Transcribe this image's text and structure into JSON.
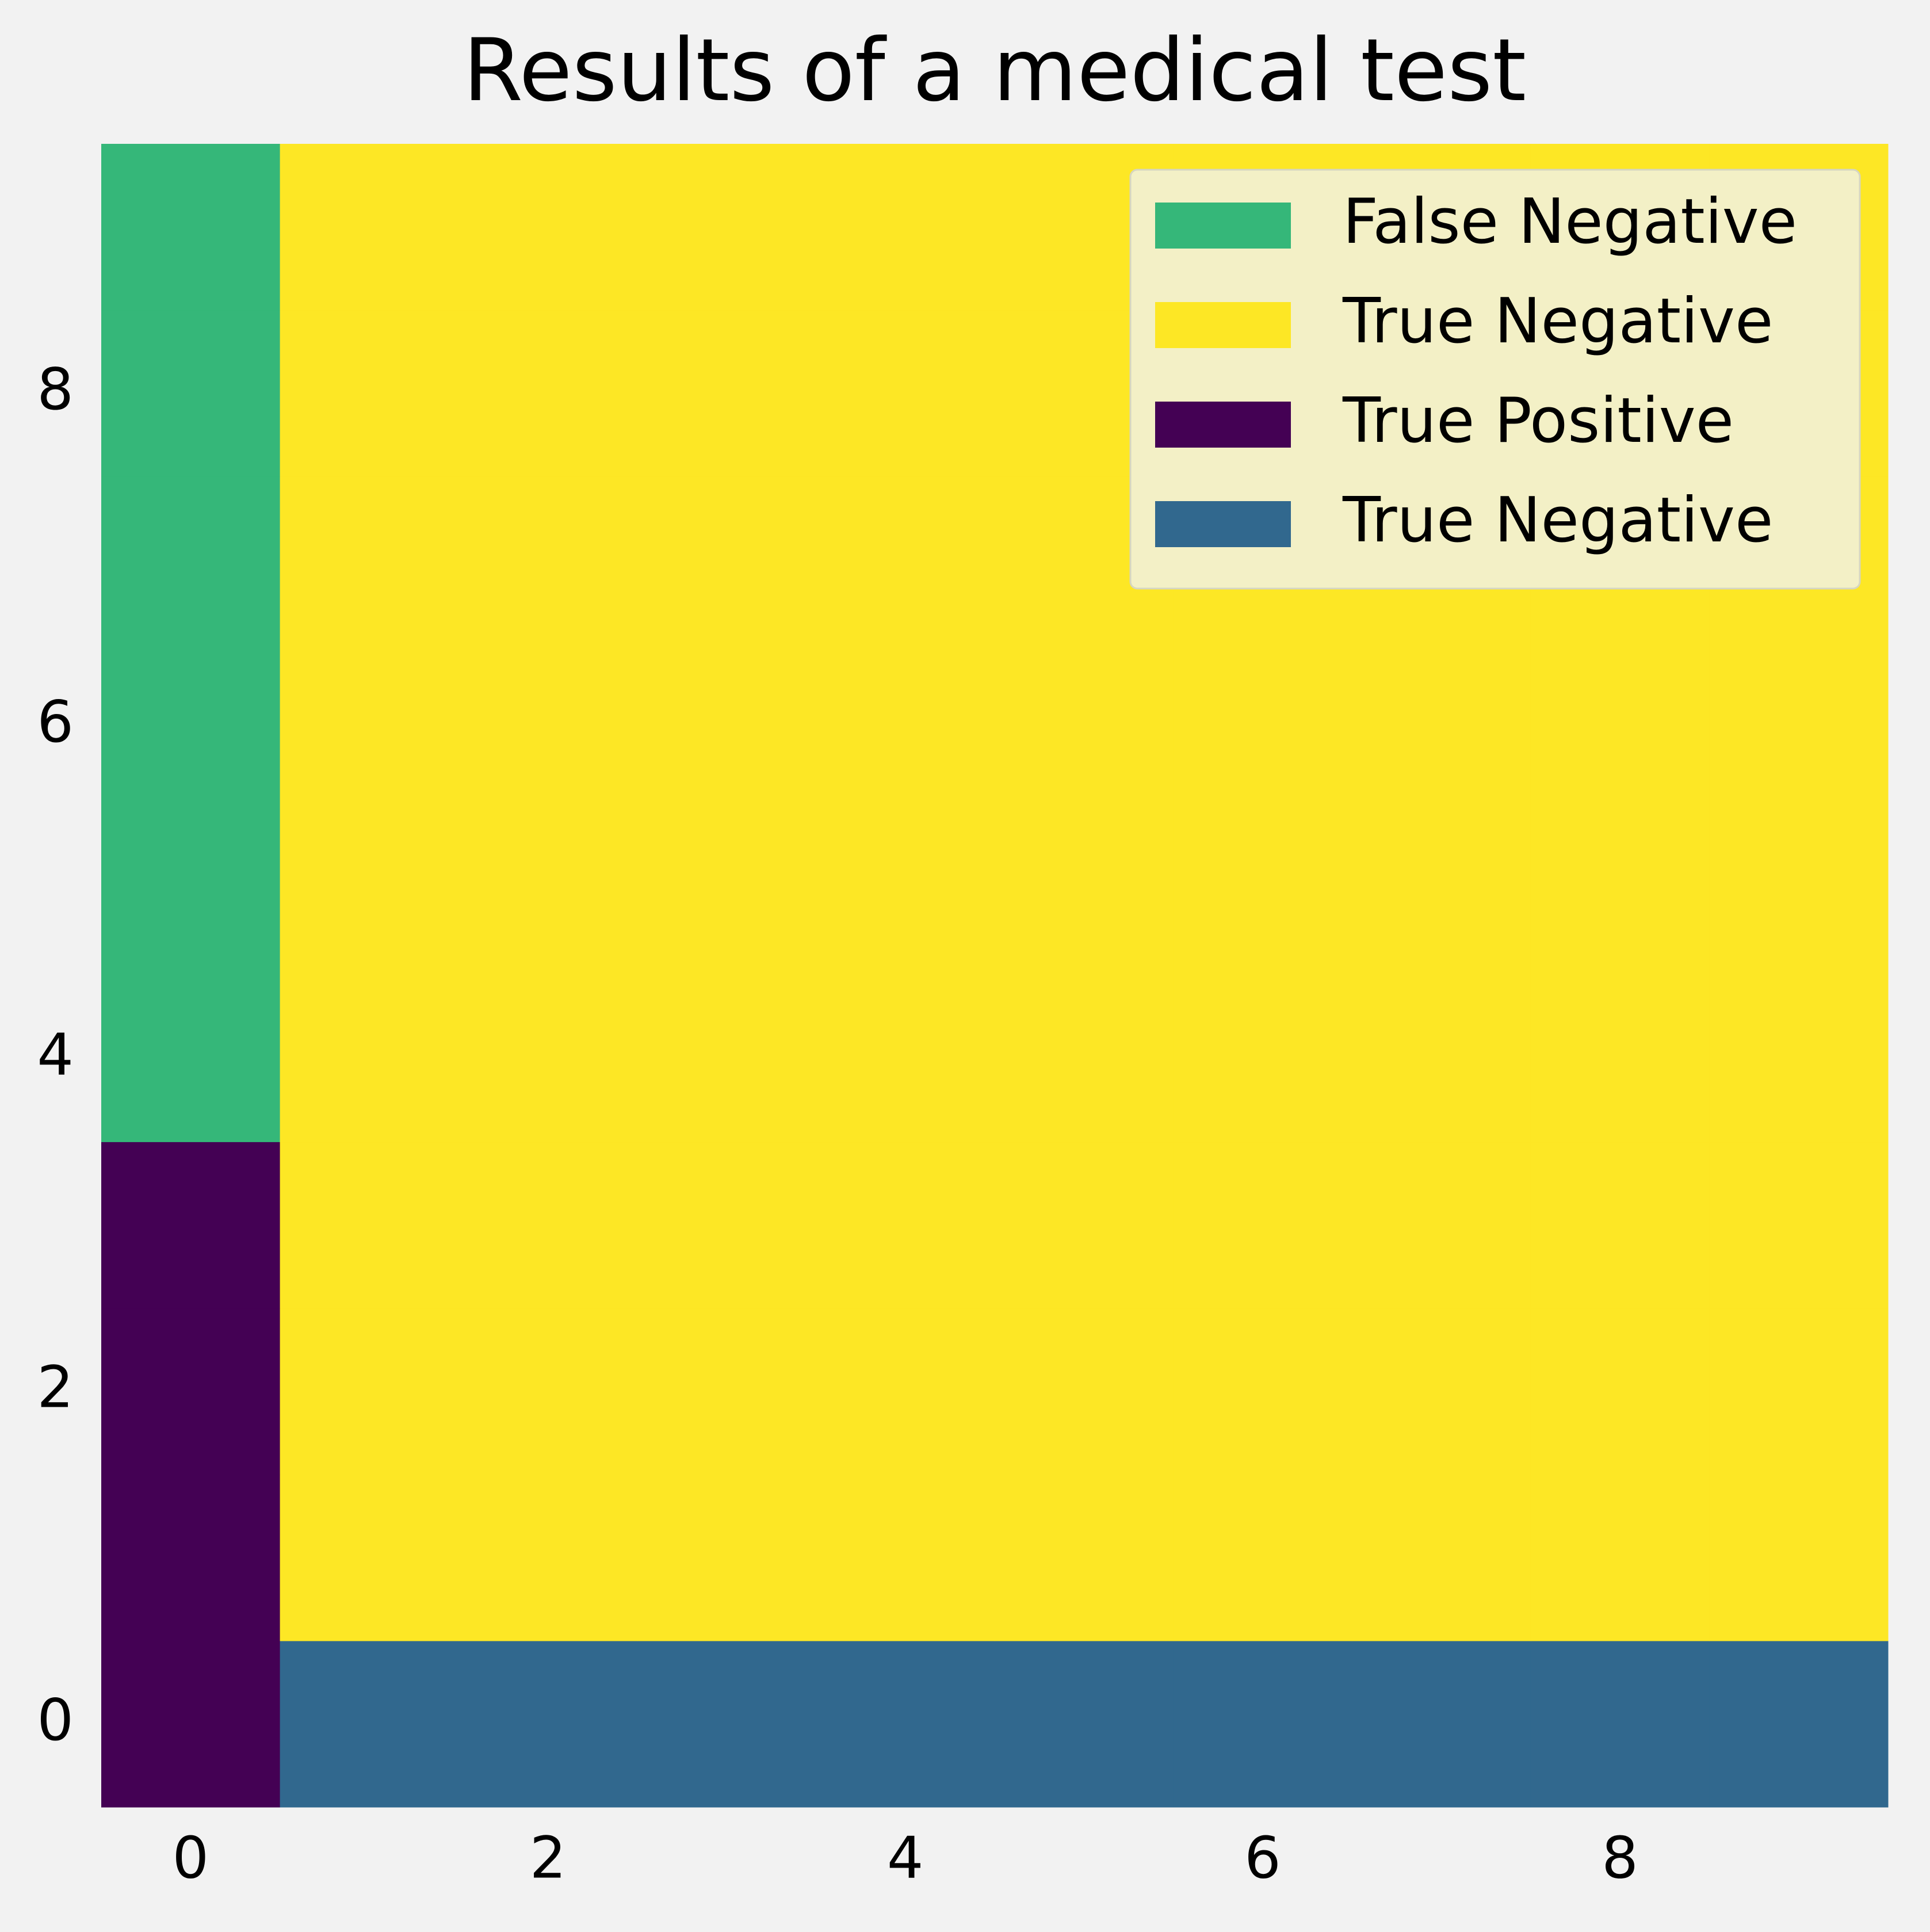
{
  "chart_data": {
    "type": "heatmap",
    "title": "Results of a medical test",
    "z": [
      [
        0,
        1,
        1,
        1,
        1,
        1,
        1,
        1,
        1,
        1
      ],
      [
        0,
        3,
        3,
        3,
        3,
        3,
        3,
        3,
        3,
        3
      ],
      [
        0,
        3,
        3,
        3,
        3,
        3,
        3,
        3,
        3,
        3
      ],
      [
        0,
        3,
        3,
        3,
        3,
        3,
        3,
        3,
        3,
        3
      ],
      [
        2,
        3,
        3,
        3,
        3,
        3,
        3,
        3,
        3,
        3
      ],
      [
        2,
        3,
        3,
        3,
        3,
        3,
        3,
        3,
        3,
        3
      ],
      [
        2,
        3,
        3,
        3,
        3,
        3,
        3,
        3,
        3,
        3
      ],
      [
        2,
        3,
        3,
        3,
        3,
        3,
        3,
        3,
        3,
        3
      ],
      [
        2,
        3,
        3,
        3,
        3,
        3,
        3,
        3,
        3,
        3
      ],
      [
        2,
        3,
        3,
        3,
        3,
        3,
        3,
        3,
        3,
        3
      ]
    ],
    "colormap": [
      "#440154",
      "#31688e",
      "#35b779",
      "#fde725"
    ],
    "legend": [
      {
        "name": "False Negative",
        "value": 2
      },
      {
        "name": "True Negative",
        "value": 3
      },
      {
        "name": "True Positive",
        "value": 0
      },
      {
        "name": "True Negative",
        "value": 1
      }
    ],
    "legend_position": "upper right",
    "xlim": [
      -0.5,
      9.5
    ],
    "ylim": [
      -0.5,
      9.5
    ],
    "xticks": [
      0,
      2,
      4,
      6,
      8
    ],
    "yticks": [
      0,
      2,
      4,
      6,
      8
    ],
    "grid": false
  }
}
